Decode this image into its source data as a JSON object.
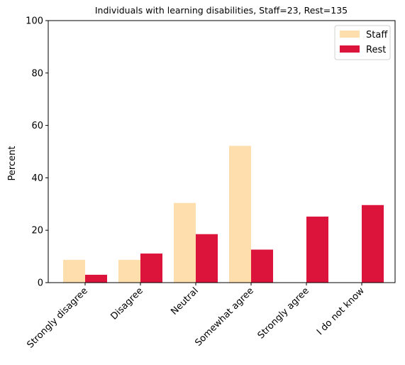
{
  "chart_data": {
    "type": "bar",
    "title": "Individuals with learning disabilities, Staff=23, Rest=135",
    "xlabel": "",
    "ylabel": "Percent",
    "ylim": [
      0,
      100
    ],
    "yticks": [
      0,
      20,
      40,
      60,
      80,
      100
    ],
    "categories": [
      "Strongly disagree",
      "Disagree",
      "Neutral",
      "Somewhat agree",
      "Strongly agree",
      "I do not know"
    ],
    "series": [
      {
        "name": "Staff",
        "color": "#ffdead",
        "values": [
          8.7,
          8.7,
          30.4,
          52.2,
          0,
          0
        ]
      },
      {
        "name": "Rest",
        "color": "#dc143c",
        "values": [
          3.0,
          11.1,
          18.5,
          12.6,
          25.2,
          29.6
        ]
      }
    ],
    "legend_position": "top-right",
    "grid": false
  }
}
